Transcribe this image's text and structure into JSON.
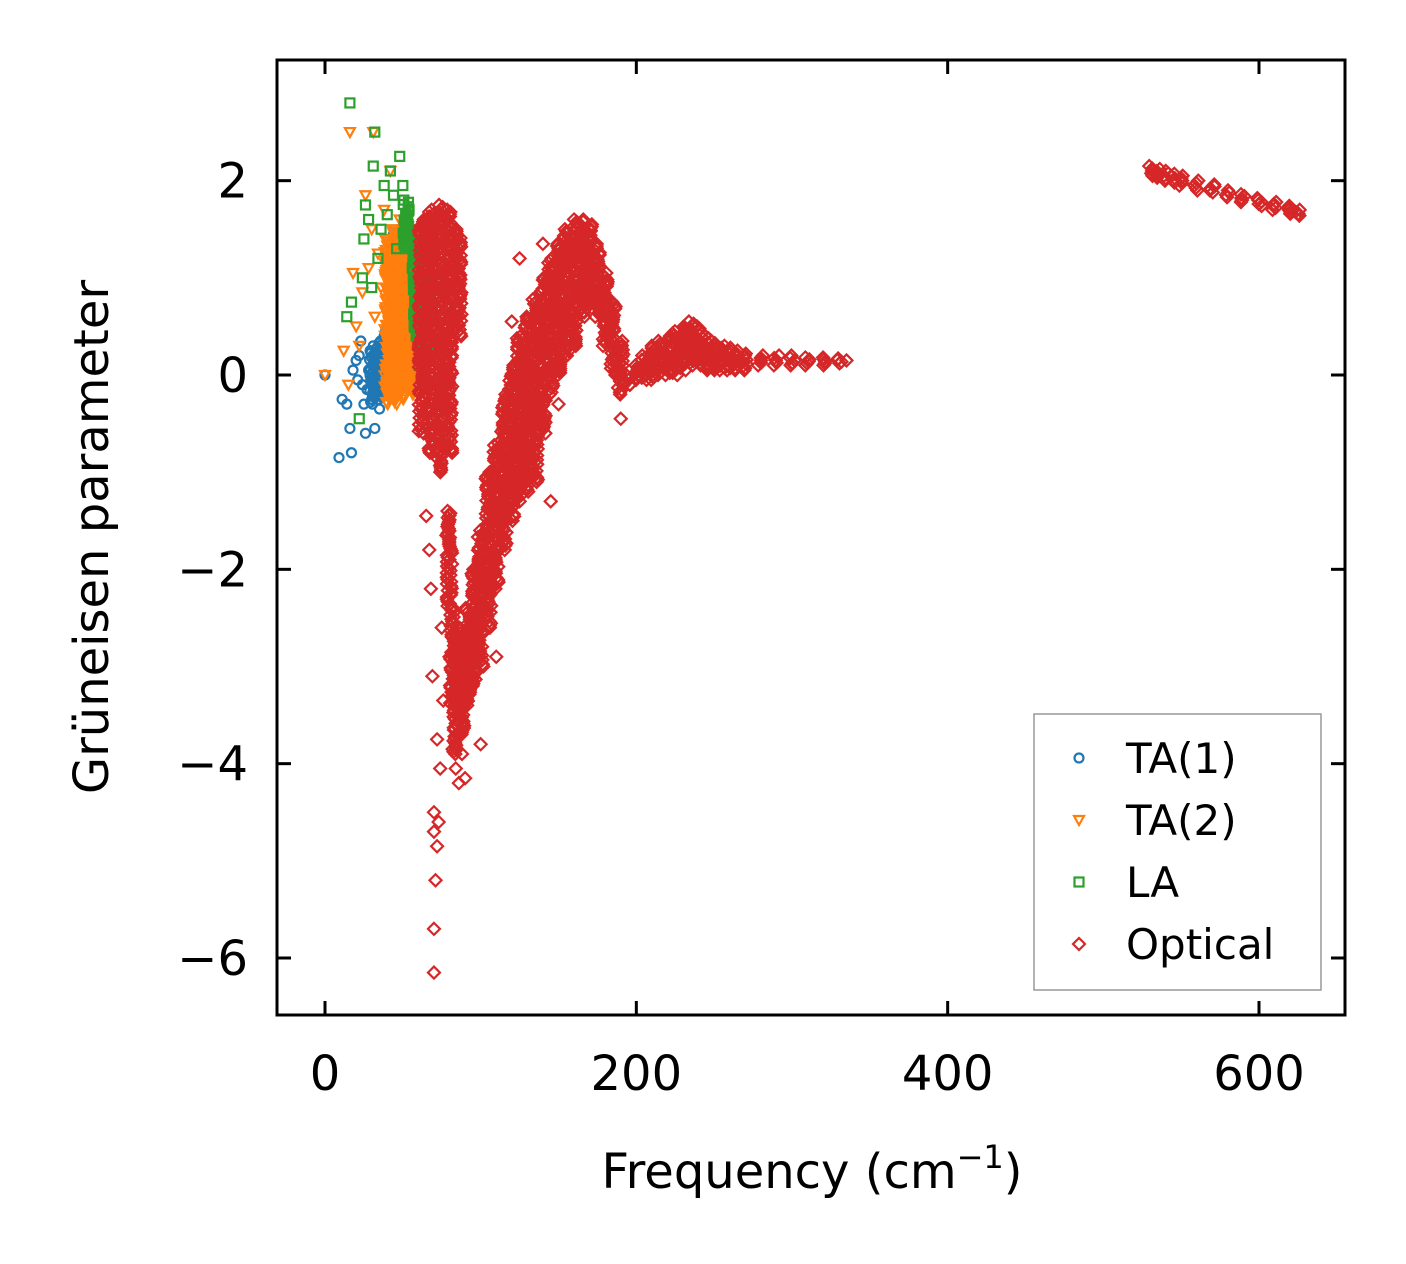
{
  "chart_data": {
    "type": "scatter",
    "title": "",
    "xlabel": "Frequency (cm",
    "xlabel_sup": "−1",
    "xlabel_suffix": ")",
    "ylabel": "Grüneisen parameter",
    "xlim": [
      -30,
      660
    ],
    "ylim": [
      -6.6,
      3.25
    ],
    "xticks": [
      0,
      200,
      400,
      600
    ],
    "xtick_labels": [
      "0",
      "200",
      "400",
      "600"
    ],
    "yticks": [
      -6,
      -4,
      -2,
      0,
      2
    ],
    "ytick_labels": [
      "−6",
      "−4",
      "−2",
      "0",
      "2"
    ],
    "legend_position": "lower-right",
    "grid": false,
    "series": [
      {
        "name": "TA(1)",
        "marker": "circle",
        "color": "#1f77b4",
        "points": [
          [
            0,
            0
          ],
          [
            9,
            -0.85
          ],
          [
            11,
            -0.25
          ],
          [
            14,
            -0.3
          ],
          [
            16,
            -0.55
          ],
          [
            17,
            -0.8
          ],
          [
            18,
            0.05
          ],
          [
            20,
            0.15
          ],
          [
            21,
            -0.05
          ],
          [
            22,
            0.2
          ],
          [
            23,
            0.35
          ],
          [
            24,
            -0.1
          ],
          [
            25,
            -0.3
          ],
          [
            26,
            -0.6
          ],
          [
            27,
            -0.15
          ],
          [
            28,
            0.05
          ],
          [
            29,
            0.25
          ],
          [
            30,
            -0.25
          ],
          [
            31,
            0.3
          ],
          [
            32,
            -0.55
          ],
          [
            33,
            -0.2
          ],
          [
            34,
            0.1
          ],
          [
            35,
            -0.35
          ],
          [
            36,
            0.15
          ],
          [
            37,
            -0.05
          ],
          [
            38,
            0.4
          ],
          [
            39,
            0.0
          ],
          [
            40,
            -0.15
          ],
          [
            41,
            0.6
          ],
          [
            42,
            0.2
          ],
          [
            43,
            -0.1
          ],
          [
            44,
            1.45
          ],
          [
            45,
            0.3
          ],
          [
            46,
            1.1
          ],
          [
            47,
            0.5
          ],
          [
            48,
            0.8
          ],
          [
            49,
            1.2
          ],
          [
            50,
            0.9
          ],
          [
            51,
            0.4
          ],
          [
            52,
            1.05
          ],
          [
            53,
            0.75
          ],
          [
            54,
            0.95
          ],
          [
            55,
            0.6
          ]
        ],
        "bands": [
          [
            30,
            -0.3,
            0.25
          ],
          [
            35,
            -0.25,
            0.35
          ],
          [
            40,
            -0.2,
            0.5
          ],
          [
            45,
            -0.1,
            0.75
          ],
          [
            50,
            0.0,
            0.9
          ],
          [
            54,
            0.1,
            0.95
          ]
        ]
      },
      {
        "name": "TA(2)",
        "marker": "triangle-down",
        "color": "#ff7f0e",
        "points": [
          [
            0,
            0
          ],
          [
            12,
            0.25
          ],
          [
            15,
            -0.1
          ],
          [
            16,
            2.5
          ],
          [
            18,
            1.05
          ],
          [
            20,
            0.5
          ],
          [
            22,
            0.3
          ],
          [
            24,
            0.85
          ],
          [
            26,
            1.85
          ],
          [
            28,
            1.1
          ],
          [
            30,
            1.5
          ],
          [
            31,
            2.5
          ],
          [
            32,
            0.6
          ],
          [
            34,
            1.25
          ],
          [
            36,
            0.9
          ],
          [
            38,
            1.7
          ],
          [
            40,
            0.4
          ],
          [
            42,
            2.1
          ],
          [
            44,
            1.4
          ],
          [
            46,
            0.2
          ],
          [
            48,
            1.6
          ],
          [
            50,
            0.8
          ],
          [
            52,
            1.3
          ],
          [
            54,
            0.1
          ],
          [
            56,
            1.0
          ],
          [
            58,
            0.5
          ],
          [
            60,
            1.5
          ],
          [
            62,
            0.7
          ]
        ],
        "bands": [
          [
            40,
            -0.3,
            1.4
          ],
          [
            45,
            -0.3,
            1.5
          ],
          [
            50,
            -0.25,
            1.5
          ],
          [
            55,
            -0.2,
            1.45
          ],
          [
            60,
            -0.1,
            1.3
          ]
        ]
      },
      {
        "name": "LA",
        "marker": "square",
        "color": "#2ca02c",
        "points": [
          [
            16,
            2.8
          ],
          [
            14,
            0.6
          ],
          [
            17,
            0.75
          ],
          [
            22,
            -0.45
          ],
          [
            24,
            1.0
          ],
          [
            25,
            1.4
          ],
          [
            26,
            1.75
          ],
          [
            28,
            1.6
          ],
          [
            30,
            0.9
          ],
          [
            31,
            2.15
          ],
          [
            32,
            2.5
          ],
          [
            34,
            1.2
          ],
          [
            36,
            1.5
          ],
          [
            38,
            1.95
          ],
          [
            40,
            1.65
          ],
          [
            42,
            2.1
          ],
          [
            44,
            1.85
          ],
          [
            46,
            1.3
          ],
          [
            48,
            2.25
          ],
          [
            50,
            1.95
          ],
          [
            52,
            1.6
          ],
          [
            54,
            1.7
          ],
          [
            56,
            1.1
          ],
          [
            58,
            0.8
          ],
          [
            60,
            0.5
          ],
          [
            62,
            0.2
          ],
          [
            64,
            1.4
          ],
          [
            66,
            1.1
          ],
          [
            65,
            -0.15
          ],
          [
            63,
            0.7
          ]
        ],
        "bands": [
          [
            52,
            1.3,
            1.8
          ],
          [
            58,
            0.4,
            1.4
          ],
          [
            62,
            0.1,
            1.2
          ],
          [
            66,
            0.3,
            1.45
          ]
        ]
      },
      {
        "name": "Optical",
        "marker": "diamond",
        "color": "#d62728",
        "points": [
          [
            65,
            -1.45
          ],
          [
            67,
            -1.8
          ],
          [
            68,
            -2.2
          ],
          [
            69,
            -3.1
          ],
          [
            70,
            -4.5
          ],
          [
            70,
            -4.7
          ],
          [
            70,
            -5.7
          ],
          [
            70,
            -6.15
          ],
          [
            71,
            -5.2
          ],
          [
            72,
            -4.85
          ],
          [
            72,
            -3.75
          ],
          [
            73,
            -4.6
          ],
          [
            74,
            -4.05
          ],
          [
            75,
            -2.6
          ],
          [
            76,
            -3.35
          ],
          [
            78,
            -1.65
          ],
          [
            80,
            -2.9
          ],
          [
            82,
            -3.85
          ],
          [
            84,
            -4.05
          ],
          [
            86,
            -4.2
          ],
          [
            88,
            -3.9
          ],
          [
            90,
            -4.15
          ],
          [
            100,
            -3.8
          ],
          [
            110,
            -2.9
          ],
          [
            120,
            0.55
          ],
          [
            125,
            1.2
          ],
          [
            130,
            0.05
          ],
          [
            135,
            -0.6
          ],
          [
            140,
            1.35
          ],
          [
            145,
            -1.3
          ],
          [
            150,
            -0.3
          ],
          [
            155,
            0.6
          ],
          [
            190,
            -0.45
          ],
          [
            196,
            -0.1
          ],
          [
            250,
            0.2
          ],
          [
            300,
            0.12
          ],
          [
            335,
            0.15
          ]
        ],
        "bands": [
          [
            62,
            -0.6,
            1.6
          ],
          [
            68,
            -0.8,
            1.7
          ],
          [
            74,
            -1.0,
            1.75
          ],
          [
            80,
            -0.8,
            1.7
          ],
          [
            86,
            0.4,
            1.5
          ],
          [
            80,
            -2.4,
            -1.4
          ],
          [
            82,
            -3.4,
            -2.4
          ],
          [
            84,
            -3.9,
            -2.8
          ],
          [
            88,
            -3.7,
            -2.6
          ],
          [
            92,
            -3.4,
            -2.4
          ],
          [
            96,
            -3.2,
            -2.0
          ],
          [
            100,
            -3.0,
            -1.6
          ],
          [
            105,
            -2.6,
            -1.0
          ],
          [
            110,
            -2.2,
            -0.7
          ],
          [
            115,
            -1.8,
            -0.2
          ],
          [
            120,
            -1.5,
            0.1
          ],
          [
            125,
            -1.3,
            0.4
          ],
          [
            130,
            -1.2,
            0.6
          ],
          [
            135,
            -1.1,
            0.8
          ],
          [
            140,
            -0.6,
            1.0
          ],
          [
            145,
            -0.2,
            1.2
          ],
          [
            150,
            0.0,
            1.35
          ],
          [
            155,
            0.2,
            1.5
          ],
          [
            160,
            0.3,
            1.6
          ],
          [
            165,
            0.6,
            1.6
          ],
          [
            170,
            0.7,
            1.55
          ],
          [
            175,
            0.6,
            1.35
          ],
          [
            180,
            0.3,
            1.05
          ],
          [
            185,
            0.0,
            0.75
          ],
          [
            190,
            -0.2,
            0.35
          ],
          [
            195,
            -0.1,
            0.0
          ],
          [
            200,
            -0.05,
            0.1
          ],
          [
            205,
            -0.05,
            0.2
          ],
          [
            210,
            -0.05,
            0.3
          ],
          [
            215,
            0.0,
            0.35
          ],
          [
            220,
            0.0,
            0.4
          ],
          [
            225,
            0.0,
            0.45
          ],
          [
            230,
            0.05,
            0.5
          ],
          [
            235,
            0.1,
            0.55
          ],
          [
            240,
            0.1,
            0.5
          ],
          [
            245,
            0.05,
            0.4
          ],
          [
            250,
            0.05,
            0.35
          ],
          [
            255,
            0.05,
            0.3
          ],
          [
            260,
            0.05,
            0.28
          ],
          [
            265,
            0.05,
            0.25
          ],
          [
            270,
            0.05,
            0.22
          ],
          [
            280,
            0.1,
            0.2
          ],
          [
            290,
            0.1,
            0.2
          ],
          [
            300,
            0.1,
            0.2
          ],
          [
            310,
            0.1,
            0.18
          ],
          [
            320,
            0.1,
            0.18
          ],
          [
            330,
            0.12,
            0.17
          ],
          [
            530,
            2.05,
            2.15
          ],
          [
            535,
            2.03,
            2.12
          ],
          [
            540,
            2.0,
            2.1
          ],
          [
            545,
            1.98,
            2.07
          ],
          [
            550,
            1.95,
            2.05
          ],
          [
            560,
            1.9,
            2.0
          ],
          [
            570,
            1.88,
            1.96
          ],
          [
            580,
            1.83,
            1.9
          ],
          [
            590,
            1.78,
            1.86
          ],
          [
            600,
            1.74,
            1.82
          ],
          [
            610,
            1.7,
            1.78
          ],
          [
            620,
            1.66,
            1.74
          ],
          [
            625,
            1.64,
            1.7
          ]
        ]
      }
    ]
  }
}
